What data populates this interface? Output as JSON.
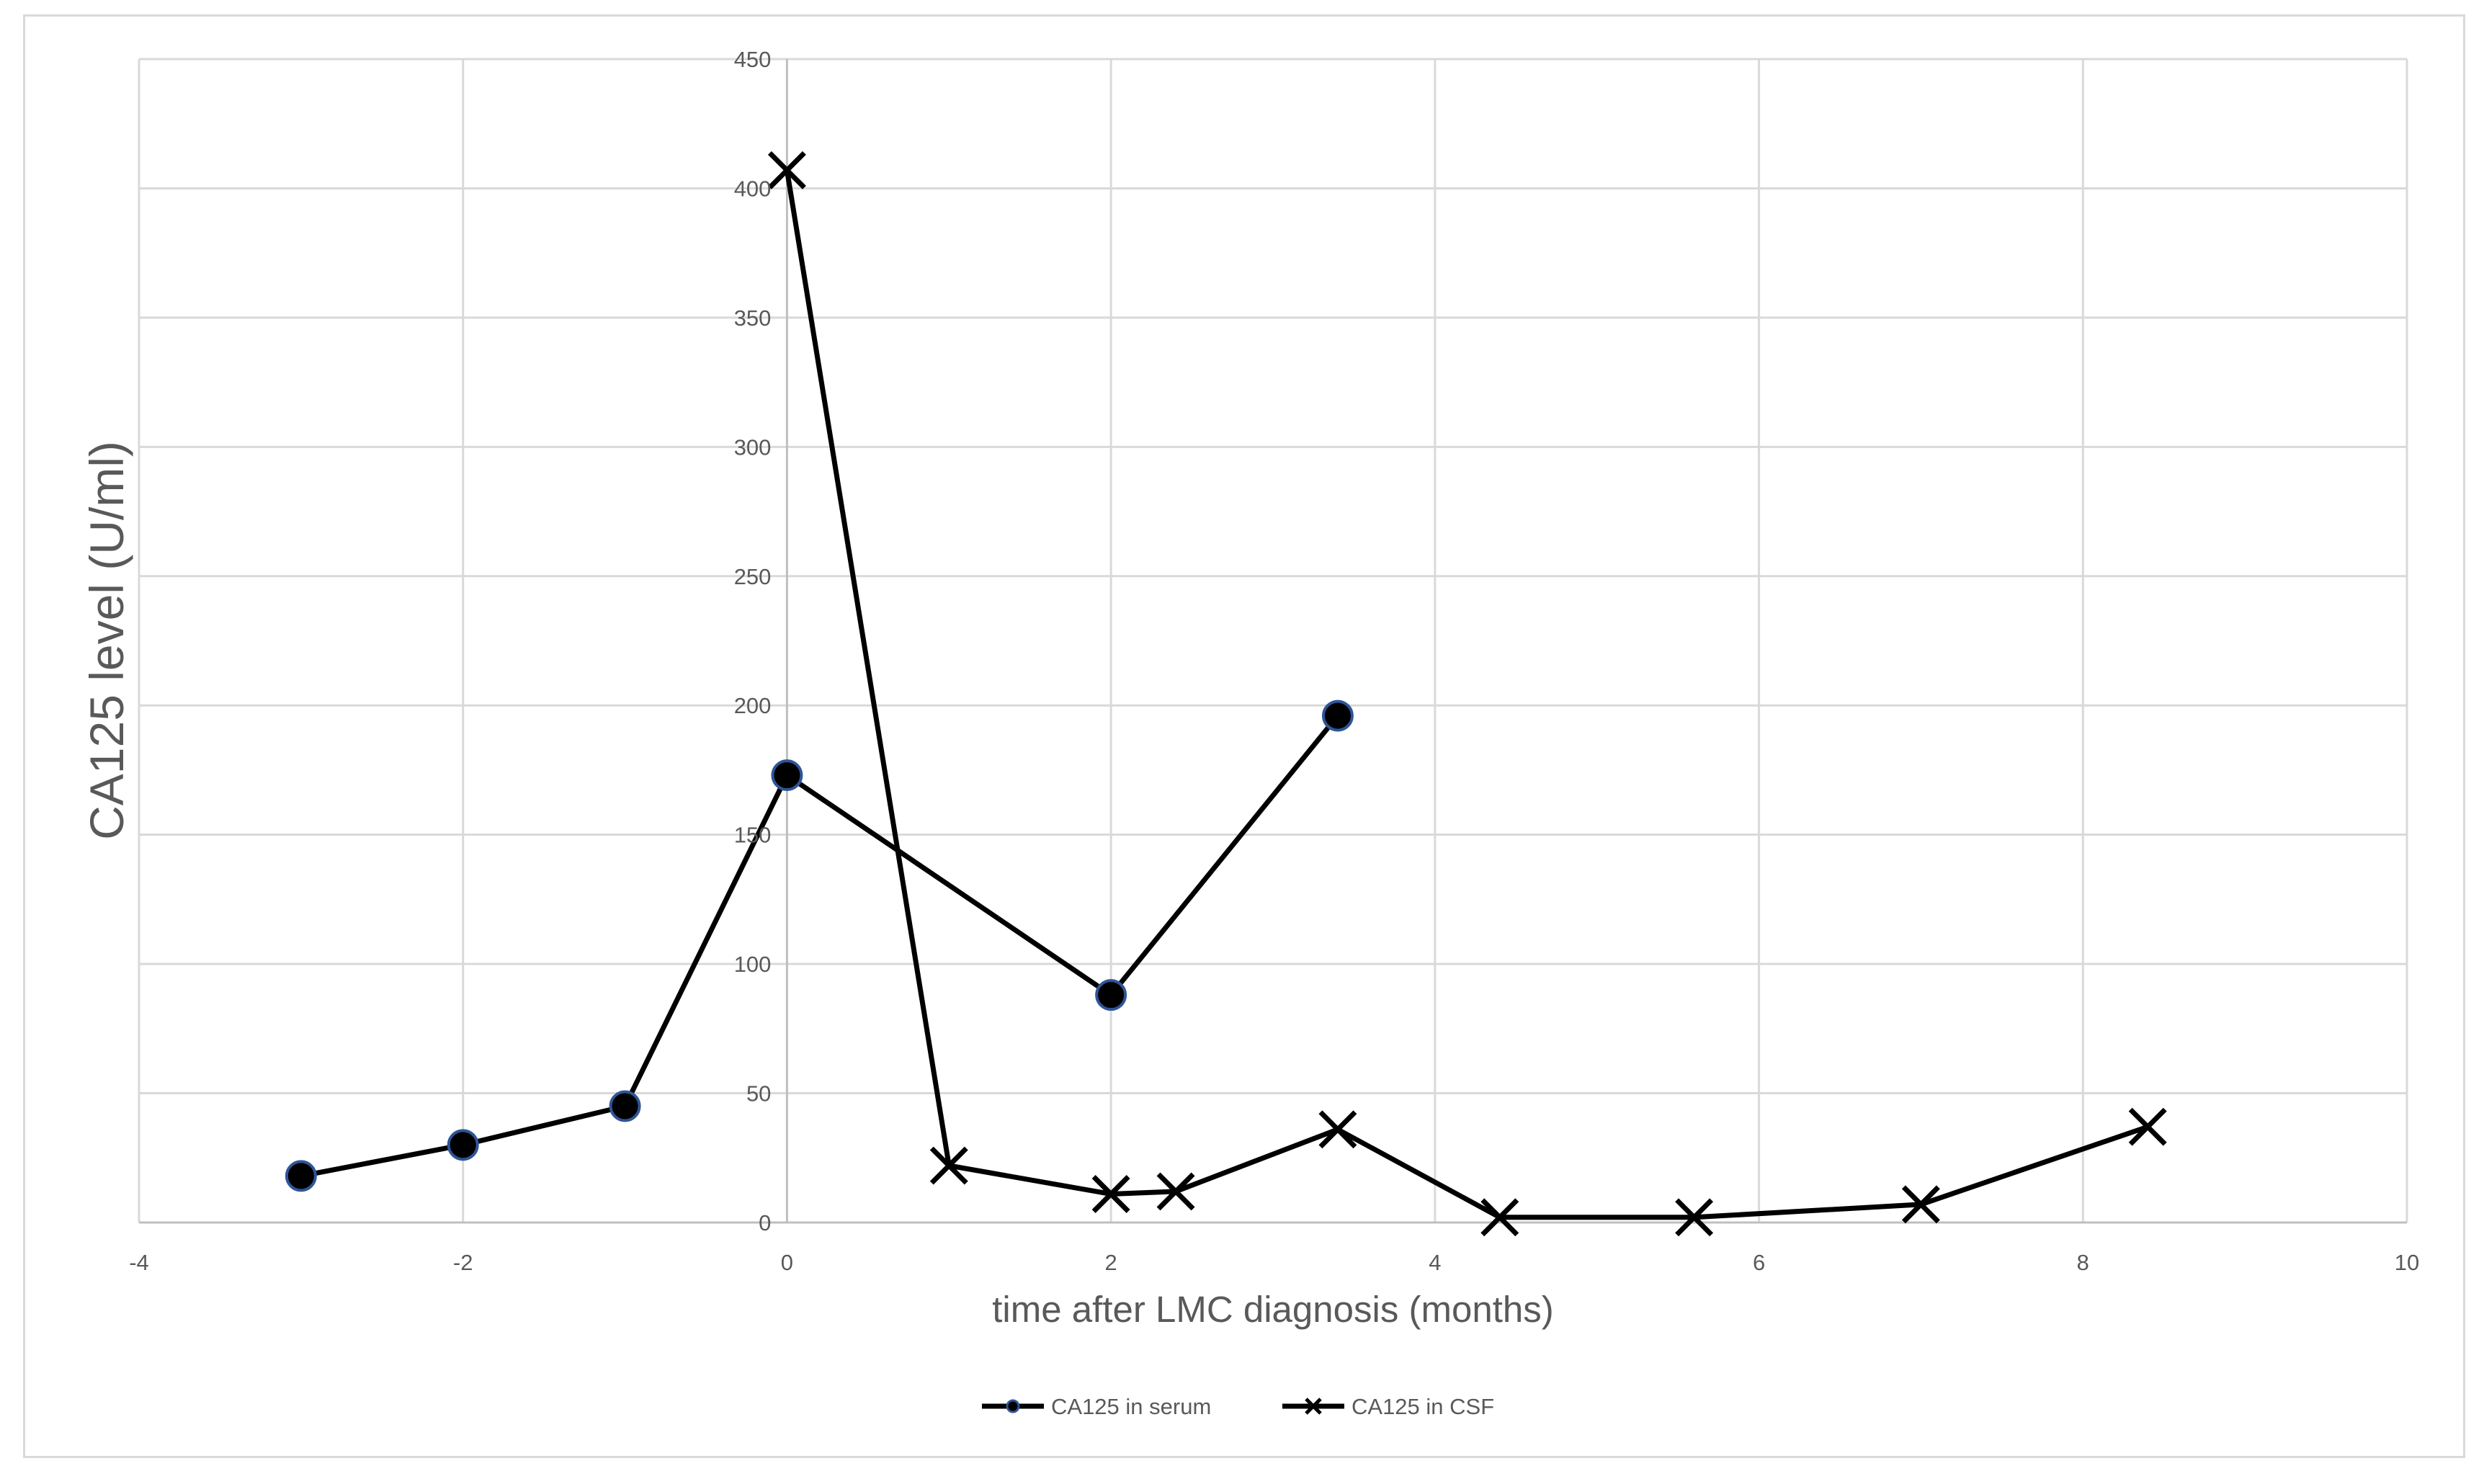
{
  "chart_data": {
    "type": "line",
    "title": "",
    "xlabel": "time after LMC diagnosis (months)",
    "ylabel": "CA125 level (U/ml)",
    "xlim": [
      -4,
      10
    ],
    "ylim": [
      0,
      450
    ],
    "x_ticks": [
      -4,
      -2,
      0,
      2,
      4,
      6,
      8,
      10
    ],
    "y_ticks": [
      0,
      50,
      100,
      150,
      200,
      250,
      300,
      350,
      400,
      450
    ],
    "grid": true,
    "legend_position": "bottom",
    "series": [
      {
        "name": "CA125 in serum",
        "marker": "circle",
        "color": "#000000",
        "marker_edge_color": "#2f5597",
        "points": [
          {
            "x": -3,
            "y": 18
          },
          {
            "x": -2,
            "y": 30
          },
          {
            "x": -1,
            "y": 45
          },
          {
            "x": 0,
            "y": 173
          },
          {
            "x": 2,
            "y": 88
          },
          {
            "x": 3.4,
            "y": 196
          }
        ]
      },
      {
        "name": "CA125 in CSF",
        "marker": "x",
        "color": "#000000",
        "points": [
          {
            "x": 0,
            "y": 407
          },
          {
            "x": 1,
            "y": 22
          },
          {
            "x": 2,
            "y": 11
          },
          {
            "x": 2.4,
            "y": 12
          },
          {
            "x": 3.4,
            "y": 36
          },
          {
            "x": 4.4,
            "y": 2
          },
          {
            "x": 5.6,
            "y": 2
          },
          {
            "x": 7,
            "y": 7
          },
          {
            "x": 8.4,
            "y": 37
          }
        ]
      }
    ]
  }
}
